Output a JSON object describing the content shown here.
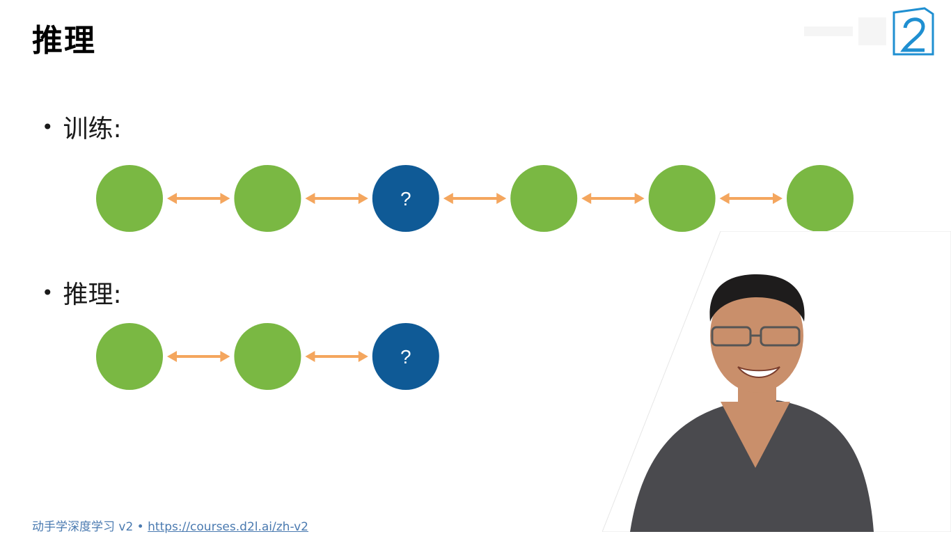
{
  "slide": {
    "title": "推理"
  },
  "bullets": {
    "training_label": "训练:",
    "inference_label": "推理:"
  },
  "rows": {
    "training": {
      "nodes": [
        {
          "type": "observed",
          "label": ""
        },
        {
          "type": "observed",
          "label": ""
        },
        {
          "type": "unknown",
          "label": "?"
        },
        {
          "type": "observed",
          "label": ""
        },
        {
          "type": "observed",
          "label": ""
        },
        {
          "type": "observed",
          "label": ""
        }
      ]
    },
    "inference": {
      "nodes": [
        {
          "type": "observed",
          "label": ""
        },
        {
          "type": "observed",
          "label": ""
        },
        {
          "type": "unknown",
          "label": "?"
        }
      ]
    }
  },
  "colors": {
    "observed": "#7ab843",
    "unknown": "#0f5a96",
    "arrow": "#f4a65e",
    "logo": "#1f8fd1"
  },
  "footer": {
    "course": "动手学深度学习 v2 • ",
    "link": "https://courses.d2l.ai/zh-v2"
  }
}
